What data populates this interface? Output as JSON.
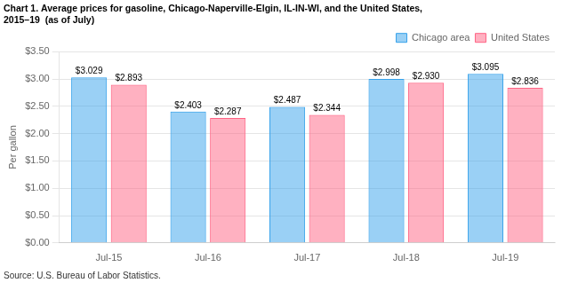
{
  "chart_data": {
    "type": "bar",
    "title": [
      "Chart 1. Average prices for gasoline, Chicago-Naperville-Elgin, IL-IN-WI, and the United States,",
      "2015–19  (as of July)"
    ],
    "y_label": "Per gallon",
    "annotations": [
      "Source: U.S. Bureau of Labor Statistics."
    ],
    "categories": [
      "Jul-15",
      "Jul-16",
      "Jul-17",
      "Jul-18",
      "Jul-19"
    ],
    "series": [
      {
        "name": "Chicago area",
        "values": [
          3.029,
          2.403,
          2.487,
          2.998,
          3.095
        ],
        "value_labels": [
          "$3.029",
          "$2.403",
          "$2.487",
          "$2.998",
          "$3.095"
        ]
      },
      {
        "name": "United States",
        "values": [
          2.893,
          2.287,
          2.344,
          2.93,
          2.836
        ],
        "value_labels": [
          "$2.893",
          "$2.287",
          "$2.344",
          "$2.930",
          "$2.836"
        ]
      }
    ],
    "ylim": [
      0,
      3.5
    ],
    "yticks": [
      {
        "value": 0,
        "label": "$0.00"
      },
      {
        "value": 0.5,
        "label": "$0.50"
      },
      {
        "value": 1,
        "label": "$1.00"
      },
      {
        "value": 1.5,
        "label": "$1.50"
      },
      {
        "value": 2,
        "label": "$2.00"
      },
      {
        "value": 2.5,
        "label": "$2.50"
      },
      {
        "value": 3,
        "label": "$3.00"
      },
      {
        "value": 3.5,
        "label": "$3.50"
      }
    ],
    "grid": "y",
    "legend": "upper right",
    "data_labels": true
  }
}
